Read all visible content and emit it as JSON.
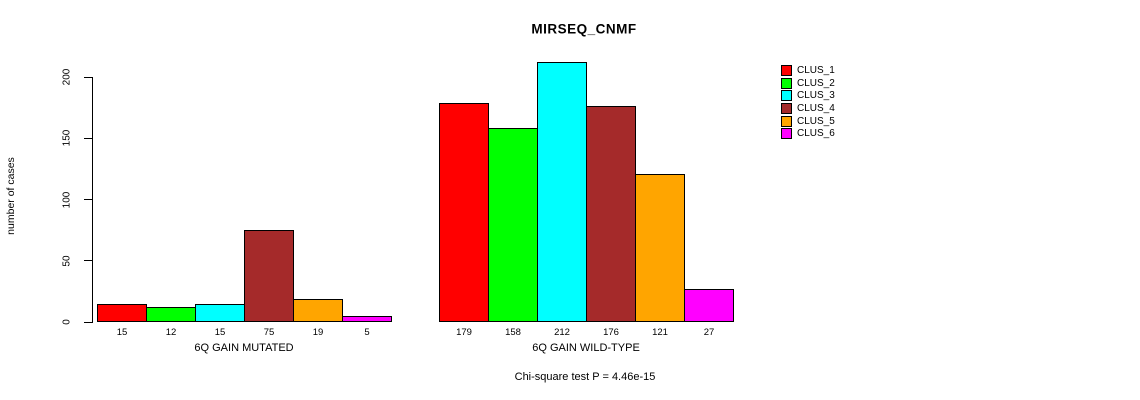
{
  "chart_data": {
    "type": "bar",
    "title": "MIRSEQ_CNMF",
    "ylabel": "number of cases",
    "xlabel": "",
    "ylim": [
      0,
      200
    ],
    "yticks": [
      0,
      50,
      100,
      150,
      200
    ],
    "grid": false,
    "legend_position": "right",
    "bar_value_labels_shown": true,
    "categories": [
      "6Q GAIN MUTATED",
      "6Q GAIN WILD-TYPE"
    ],
    "series": [
      {
        "name": "CLUS_1",
        "color": "#FF0000",
        "values": [
          15,
          179
        ]
      },
      {
        "name": "CLUS_2",
        "color": "#00FF00",
        "values": [
          12,
          158
        ]
      },
      {
        "name": "CLUS_3",
        "color": "#00FFFF",
        "values": [
          15,
          212
        ]
      },
      {
        "name": "CLUS_4",
        "color": "#A52A2A",
        "values": [
          75,
          176
        ]
      },
      {
        "name": "CLUS_5",
        "color": "#FFA500",
        "values": [
          19,
          121
        ]
      },
      {
        "name": "CLUS_6",
        "color": "#FF00FF",
        "values": [
          5,
          27
        ]
      }
    ],
    "annotation": "Chi-square test P = 4.46e-15",
    "axis_color": "#000000",
    "background_color": "#FFFFFF"
  }
}
